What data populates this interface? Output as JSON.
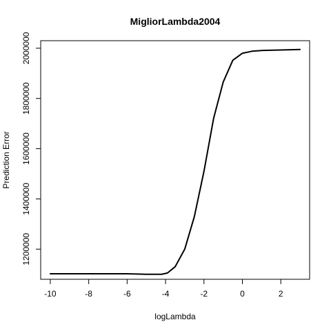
{
  "chart_data": {
    "type": "line",
    "title": "MigliorLambda2004",
    "xlabel": "logLambda",
    "ylabel": "Prediction Error",
    "xlim": [
      -10.5,
      3.5
    ],
    "ylim": [
      1080000,
      2030000
    ],
    "x_ticks": [
      {
        "value": -10,
        "label": "-10"
      },
      {
        "value": -8,
        "label": "-8"
      },
      {
        "value": -6,
        "label": "-6"
      },
      {
        "value": -4,
        "label": "-4"
      },
      {
        "value": -2,
        "label": "-2"
      },
      {
        "value": 0,
        "label": "0"
      },
      {
        "value": 2,
        "label": "2"
      }
    ],
    "y_ticks": [
      {
        "value": 1200000,
        "label": "1200000"
      },
      {
        "value": 1400000,
        "label": "1400000"
      },
      {
        "value": 1600000,
        "label": "1600000"
      },
      {
        "value": 1800000,
        "label": "1800000"
      },
      {
        "value": 2000000,
        "label": "2000000"
      }
    ],
    "series": [
      {
        "name": "Prediction Error",
        "color": "#000000",
        "x": [
          -10,
          -9,
          -8,
          -7,
          -6,
          -5,
          -4.5,
          -4.2,
          -3.9,
          -3.5,
          -3,
          -2.5,
          -2,
          -1.5,
          -1,
          -0.5,
          0,
          0.5,
          1,
          2,
          3
        ],
        "y": [
          1102000,
          1102000,
          1102000,
          1102000,
          1102000,
          1100000,
          1100000,
          1100000,
          1105000,
          1130000,
          1200000,
          1330000,
          1510000,
          1720000,
          1865000,
          1952000,
          1980000,
          1988000,
          1991000,
          1993000,
          1995000
        ]
      }
    ]
  }
}
